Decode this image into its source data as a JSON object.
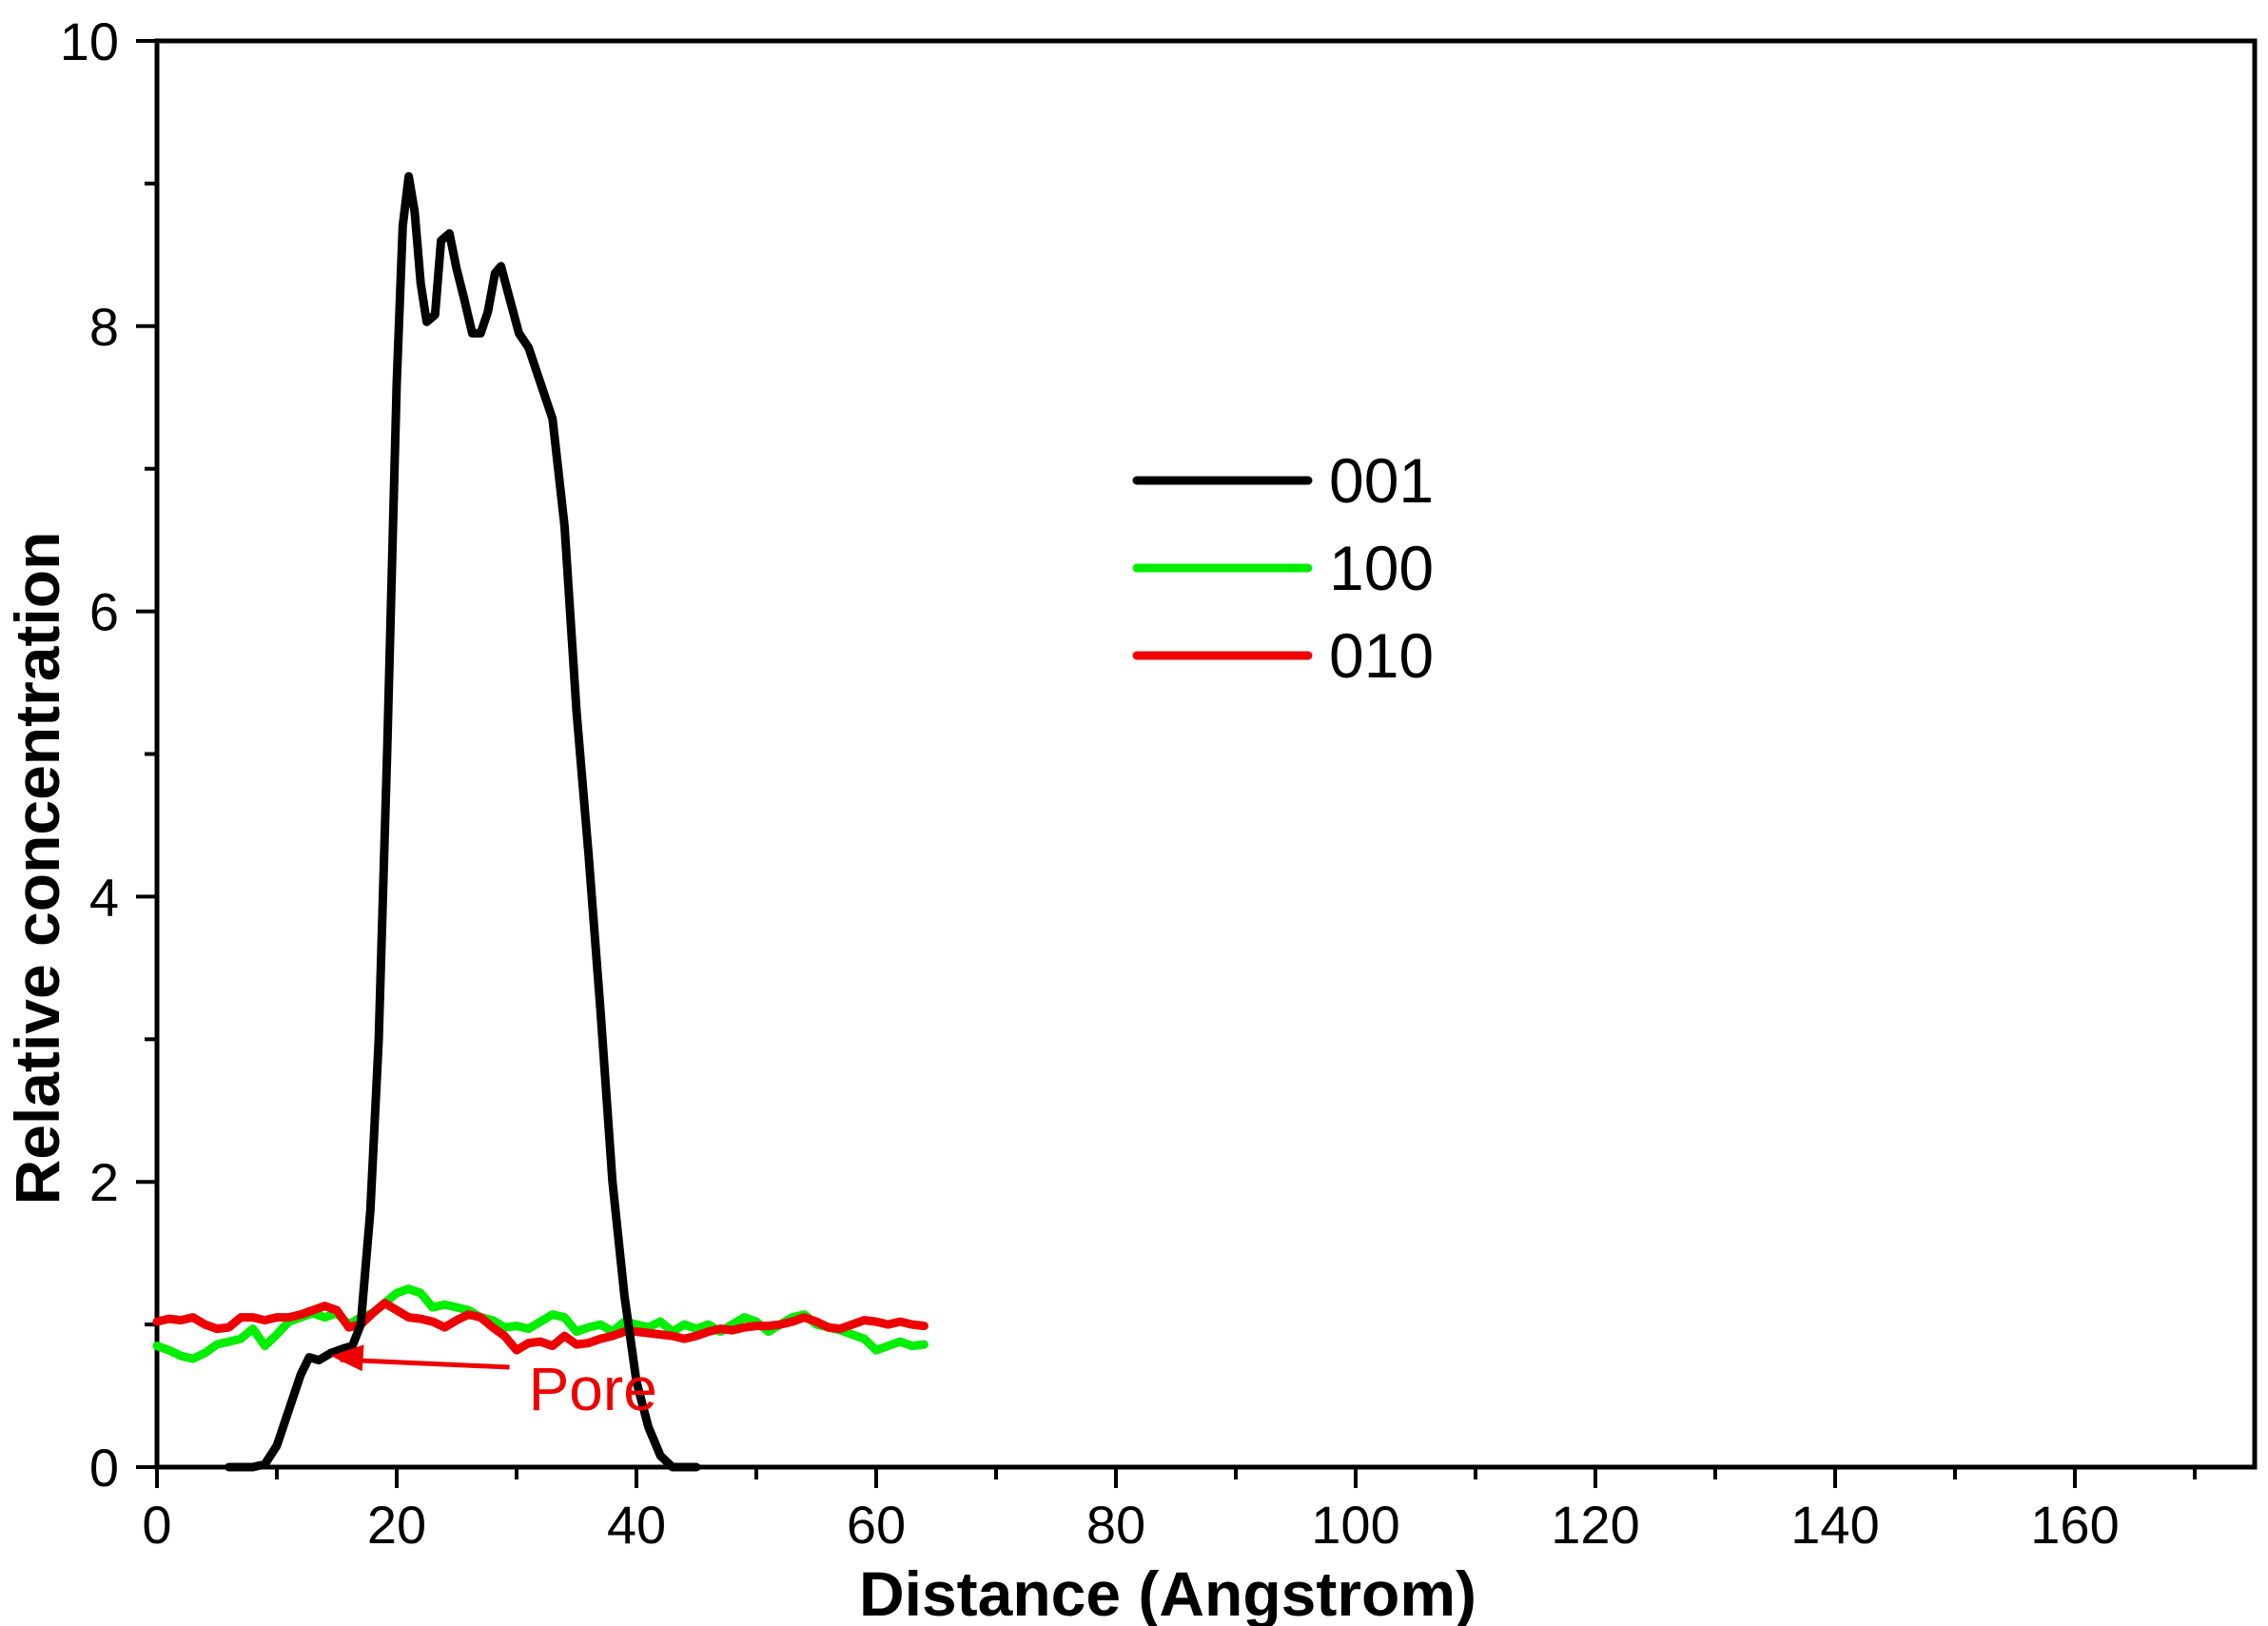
{
  "chart_data": {
    "type": "line",
    "title": "",
    "xlabel": "Distance (Angstrom)",
    "ylabel": "Relative concentration",
    "xlim": [
      0,
      175
    ],
    "ylim": [
      0,
      10
    ],
    "x_ticks": [
      0,
      20,
      40,
      60,
      80,
      100,
      120,
      140,
      160
    ],
    "y_ticks": [
      0,
      2,
      4,
      6,
      8,
      10
    ],
    "x_minor_step": 10,
    "y_minor_step": 1,
    "legend": {
      "placement": "center-top"
    },
    "series": [
      {
        "name": "001",
        "color": "#000000",
        "points": [
          [
            6,
            0
          ],
          [
            8,
            0
          ],
          [
            9,
            0.02
          ],
          [
            10,
            0.15
          ],
          [
            11,
            0.4
          ],
          [
            12,
            0.65
          ],
          [
            12.7,
            0.77
          ],
          [
            13.5,
            0.75
          ],
          [
            14.5,
            0.8
          ],
          [
            15.5,
            0.83
          ],
          [
            16.3,
            0.85
          ],
          [
            17,
            1.0
          ],
          [
            17.8,
            1.8
          ],
          [
            18.5,
            3.0
          ],
          [
            19.2,
            5.0
          ],
          [
            20,
            7.6
          ],
          [
            20.5,
            8.7
          ],
          [
            21,
            9.05
          ],
          [
            21.5,
            8.8
          ],
          [
            22,
            8.3
          ],
          [
            22.5,
            8.03
          ],
          [
            23.2,
            8.08
          ],
          [
            23.7,
            8.6
          ],
          [
            24.4,
            8.65
          ],
          [
            25,
            8.4
          ],
          [
            25.6,
            8.2
          ],
          [
            26.3,
            7.95
          ],
          [
            27,
            7.95
          ],
          [
            27.6,
            8.1
          ],
          [
            28.2,
            8.37
          ],
          [
            28.7,
            8.42
          ],
          [
            29.4,
            8.2
          ],
          [
            30.2,
            7.95
          ],
          [
            31,
            7.85
          ],
          [
            32,
            7.6
          ],
          [
            33,
            7.35
          ],
          [
            34,
            6.6
          ],
          [
            35,
            5.3
          ],
          [
            36,
            4.3
          ],
          [
            37,
            3.2
          ],
          [
            38,
            2.0
          ],
          [
            39,
            1.2
          ],
          [
            40,
            0.6
          ],
          [
            41,
            0.28
          ],
          [
            42,
            0.08
          ],
          [
            43,
            0
          ],
          [
            45,
            0
          ]
        ]
      },
      {
        "name": "100",
        "color": "#00ee00",
        "points": [
          [
            0,
            0.85
          ],
          [
            1,
            0.82
          ],
          [
            2,
            0.78
          ],
          [
            3,
            0.76
          ],
          [
            4,
            0.8
          ],
          [
            5,
            0.86
          ],
          [
            6,
            0.88
          ],
          [
            7,
            0.9
          ],
          [
            8,
            0.97
          ],
          [
            9,
            0.85
          ],
          [
            10,
            0.93
          ],
          [
            11,
            1.02
          ],
          [
            12,
            1.05
          ],
          [
            13,
            1.08
          ],
          [
            14,
            1.05
          ],
          [
            15,
            1.08
          ],
          [
            16,
            1.0
          ],
          [
            17,
            1.05
          ],
          [
            18,
            1.08
          ],
          [
            19,
            1.15
          ],
          [
            20,
            1.22
          ],
          [
            21,
            1.25
          ],
          [
            22,
            1.22
          ],
          [
            23,
            1.12
          ],
          [
            24,
            1.14
          ],
          [
            25,
            1.12
          ],
          [
            26,
            1.1
          ],
          [
            27,
            1.05
          ],
          [
            28,
            1.03
          ],
          [
            29,
            0.98
          ],
          [
            30,
            0.99
          ],
          [
            31,
            0.97
          ],
          [
            32,
            1.02
          ],
          [
            33,
            1.07
          ],
          [
            34,
            1.05
          ],
          [
            35,
            0.95
          ],
          [
            36,
            0.98
          ],
          [
            37,
            1.0
          ],
          [
            38,
            0.95
          ],
          [
            39,
            1.02
          ],
          [
            40,
            1.0
          ],
          [
            41,
            0.98
          ],
          [
            42,
            1.02
          ],
          [
            43,
            0.95
          ],
          [
            44,
            1.0
          ],
          [
            45,
            0.97
          ],
          [
            46,
            1.0
          ],
          [
            47,
            0.95
          ],
          [
            48,
            1.0
          ],
          [
            49,
            1.05
          ],
          [
            50,
            1.02
          ],
          [
            51,
            0.95
          ],
          [
            52,
            1.0
          ],
          [
            53,
            1.05
          ],
          [
            54,
            1.07
          ],
          [
            55,
            1.0
          ],
          [
            56,
            0.98
          ],
          [
            57,
            0.96
          ],
          [
            58,
            0.93
          ],
          [
            59,
            0.9
          ],
          [
            60,
            0.82
          ],
          [
            61,
            0.85
          ],
          [
            62,
            0.88
          ],
          [
            63,
            0.85
          ],
          [
            64,
            0.86
          ]
        ]
      },
      {
        "name": "010",
        "color": "#ee0000",
        "points": [
          [
            0,
            1.02
          ],
          [
            1,
            1.04
          ],
          [
            2,
            1.03
          ],
          [
            3,
            1.05
          ],
          [
            4,
            1.0
          ],
          [
            5,
            0.97
          ],
          [
            6,
            0.98
          ],
          [
            7,
            1.05
          ],
          [
            8,
            1.05
          ],
          [
            9,
            1.03
          ],
          [
            10,
            1.05
          ],
          [
            11,
            1.05
          ],
          [
            12,
            1.07
          ],
          [
            13,
            1.1
          ],
          [
            14,
            1.13
          ],
          [
            15,
            1.1
          ],
          [
            16,
            0.98
          ],
          [
            17,
            1.0
          ],
          [
            18,
            1.08
          ],
          [
            19,
            1.15
          ],
          [
            20,
            1.1
          ],
          [
            21,
            1.05
          ],
          [
            22,
            1.04
          ],
          [
            23,
            1.02
          ],
          [
            24,
            0.98
          ],
          [
            25,
            1.03
          ],
          [
            26,
            1.07
          ],
          [
            27,
            1.05
          ],
          [
            28,
            0.98
          ],
          [
            29,
            0.92
          ],
          [
            30,
            0.82
          ],
          [
            31,
            0.87
          ],
          [
            32,
            0.88
          ],
          [
            33,
            0.85
          ],
          [
            34,
            0.92
          ],
          [
            35,
            0.86
          ],
          [
            36,
            0.87
          ],
          [
            37,
            0.9
          ],
          [
            38,
            0.92
          ],
          [
            39,
            0.95
          ],
          [
            40,
            0.95
          ],
          [
            41,
            0.94
          ],
          [
            42,
            0.93
          ],
          [
            43,
            0.92
          ],
          [
            44,
            0.9
          ],
          [
            45,
            0.92
          ],
          [
            46,
            0.95
          ],
          [
            47,
            0.97
          ],
          [
            48,
            0.96
          ],
          [
            49,
            0.98
          ],
          [
            50,
            0.99
          ],
          [
            51,
            0.99
          ],
          [
            52,
            1.0
          ],
          [
            53,
            1.02
          ],
          [
            54,
            1.05
          ],
          [
            55,
            1.02
          ],
          [
            56,
            0.98
          ],
          [
            57,
            0.97
          ],
          [
            58,
            1.0
          ],
          [
            59,
            1.03
          ],
          [
            60,
            1.02
          ],
          [
            61,
            1.0
          ],
          [
            62,
            1.02
          ],
          [
            63,
            1.0
          ],
          [
            64,
            0.99
          ]
        ]
      }
    ],
    "annotations": [
      {
        "text": "Pore",
        "color": "#ee0000",
        "x": 31,
        "y": 0.4,
        "arrow_to": [
          14.5,
          0.78
        ]
      }
    ]
  }
}
